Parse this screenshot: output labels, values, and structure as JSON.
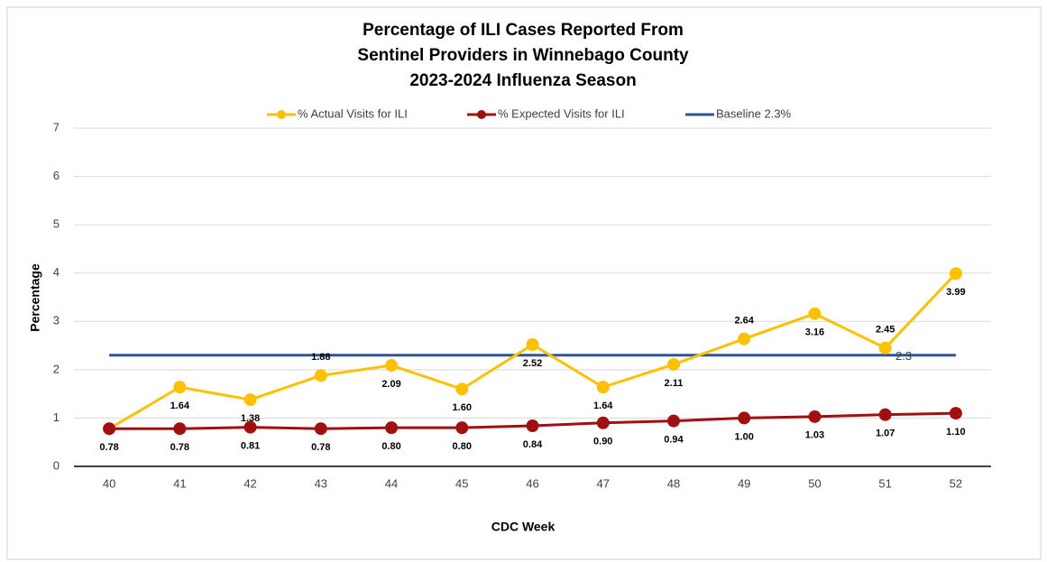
{
  "chart_data": {
    "type": "line",
    "title": [
      "Percentage of ILI Cases Reported From",
      "Sentinel Providers in Winnebago County",
      "2023-2024 Influenza Season"
    ],
    "x_label": "CDC Week",
    "y_label": "Percentage",
    "categories": [
      "40",
      "41",
      "42",
      "43",
      "44",
      "45",
      "46",
      "47",
      "48",
      "49",
      "50",
      "51",
      "52"
    ],
    "series": [
      {
        "name": "% Actual Visits for ILI",
        "color": "#ffc000",
        "values": [
          0.78,
          1.64,
          1.38,
          1.88,
          2.09,
          1.6,
          2.52,
          1.64,
          2.11,
          2.64,
          3.16,
          2.45,
          3.99
        ],
        "value_labels": [
          "0.78",
          "1.64",
          "1.38",
          "1.88",
          "2.09",
          "1.60",
          "2.52",
          "1.64",
          "2.11",
          "2.64",
          "3.16",
          "2.45",
          "3.99"
        ]
      },
      {
        "name": "% Expected Visits for ILI",
        "color": "#a01010",
        "values": [
          0.78,
          0.78,
          0.81,
          0.78,
          0.8,
          0.8,
          0.84,
          0.9,
          0.94,
          1.0,
          1.03,
          1.07,
          1.1
        ],
        "value_labels": [
          "0.78",
          "0.78",
          "0.81",
          "0.78",
          "0.80",
          "0.80",
          "0.84",
          "0.90",
          "0.94",
          "1.00",
          "1.03",
          "1.07",
          "1.10"
        ]
      }
    ],
    "baseline": {
      "name": "Baseline 2.3%",
      "value": 2.3,
      "color": "#2f5597"
    },
    "ylim": [
      0,
      7
    ],
    "yticks": [
      0,
      1,
      2,
      3,
      4,
      5,
      6,
      7
    ],
    "grid": true,
    "legend": "top"
  }
}
